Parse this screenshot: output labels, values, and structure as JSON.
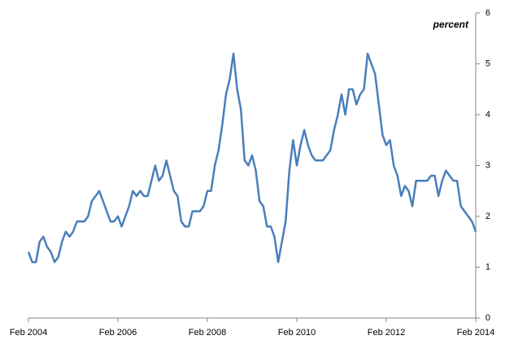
{
  "chart_data": {
    "type": "line",
    "y_label": "percent",
    "categories": [
      "Feb 2004",
      null,
      null,
      null,
      null,
      null,
      null,
      null,
      null,
      null,
      null,
      null,
      null,
      null,
      null,
      null,
      null,
      null,
      null,
      null,
      null,
      null,
      null,
      null,
      "Feb 2006",
      null,
      null,
      null,
      null,
      null,
      null,
      null,
      null,
      null,
      null,
      null,
      null,
      null,
      null,
      null,
      null,
      null,
      null,
      null,
      null,
      null,
      null,
      null,
      "Feb 2008",
      null,
      null,
      null,
      null,
      null,
      null,
      null,
      null,
      null,
      null,
      null,
      null,
      null,
      null,
      null,
      null,
      null,
      null,
      null,
      null,
      null,
      null,
      null,
      "Feb 2010",
      null,
      null,
      null,
      null,
      null,
      null,
      null,
      null,
      null,
      null,
      null,
      null,
      null,
      null,
      null,
      null,
      null,
      null,
      null,
      null,
      null,
      null,
      null,
      "Feb 2012",
      null,
      null,
      null,
      null,
      null,
      null,
      null,
      null,
      null,
      null,
      null,
      null,
      null,
      null,
      null,
      null,
      null,
      null,
      null,
      null,
      null,
      null,
      null,
      "Feb 2014"
    ],
    "series": [
      {
        "color": "#4a7ebb",
        "values": [
          1.3,
          1.1,
          1.1,
          1.5,
          1.6,
          1.4,
          1.3,
          1.1,
          1.2,
          1.5,
          1.7,
          1.6,
          1.7,
          1.9,
          1.9,
          1.9,
          2.0,
          2.3,
          2.4,
          2.5,
          2.3,
          2.1,
          1.9,
          1.9,
          2.0,
          1.8,
          2.0,
          2.2,
          2.5,
          2.4,
          2.5,
          2.4,
          2.4,
          2.7,
          3.0,
          2.7,
          2.8,
          3.1,
          2.8,
          2.5,
          2.4,
          1.9,
          1.8,
          1.8,
          2.1,
          2.1,
          2.1,
          2.2,
          2.5,
          2.5,
          3.0,
          3.3,
          3.8,
          4.4,
          4.7,
          5.2,
          4.5,
          4.1,
          3.1,
          3.0,
          3.2,
          2.9,
          2.3,
          2.2,
          1.8,
          1.8,
          1.6,
          1.1,
          1.5,
          1.9,
          2.9,
          3.5,
          3.0,
          3.4,
          3.7,
          3.4,
          3.2,
          3.1,
          3.1,
          3.1,
          3.2,
          3.3,
          3.7,
          4.0,
          4.4,
          4.0,
          4.5,
          4.5,
          4.2,
          4.4,
          4.5,
          5.2,
          5.0,
          4.8,
          4.2,
          3.6,
          3.4,
          3.5,
          3.0,
          2.8,
          2.4,
          2.6,
          2.5,
          2.2,
          2.7,
          2.7,
          2.7,
          2.7,
          2.8,
          2.8,
          2.4,
          2.7,
          2.9,
          2.8,
          2.7,
          2.7,
          2.2,
          2.1,
          2.0,
          1.9,
          1.7
        ]
      }
    ],
    "ylim": [
      0,
      6
    ],
    "yticks": [
      0,
      1,
      2,
      3,
      4,
      5,
      6
    ],
    "y_axis_side": "right",
    "grid": false
  }
}
